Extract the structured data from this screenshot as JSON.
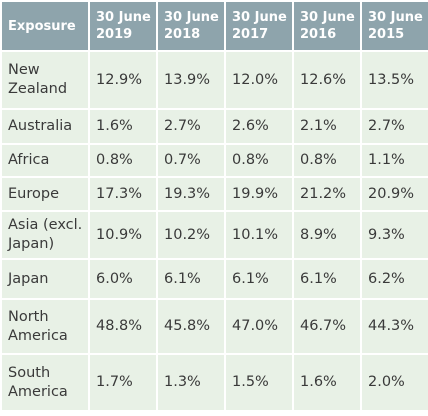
{
  "table": {
    "header": [
      "Exposure",
      "30 June 2019",
      "30 June 2018",
      "30 June 2017",
      "30 June 2016",
      "30 June 2015"
    ],
    "rows": [
      [
        "New Zealand",
        "12.9%",
        "13.9%",
        "12.0%",
        "12.6%",
        "13.5%"
      ],
      [
        "Australia",
        "1.6%",
        "2.7%",
        "2.6%",
        "2.1%",
        "2.7%"
      ],
      [
        "Africa",
        "0.8%",
        "0.7%",
        "0.8%",
        "0.8%",
        "1.1%"
      ],
      [
        "Europe",
        "17.3%",
        "19.3%",
        "19.9%",
        "21.2%",
        "20.9%"
      ],
      [
        "Asia (excl. Japan)",
        "10.9%",
        "10.2%",
        "10.1%",
        "8.9%",
        "9.3%"
      ],
      [
        "Japan",
        "6.0%",
        "6.1%",
        "6.1%",
        "6.1%",
        "6.2%"
      ],
      [
        "North America",
        "48.8%",
        "45.8%",
        "47.0%",
        "46.7%",
        "44.3%"
      ],
      [
        "South America",
        "1.7%",
        "1.3%",
        "1.5%",
        "1.6%",
        "2.0%"
      ]
    ]
  }
}
